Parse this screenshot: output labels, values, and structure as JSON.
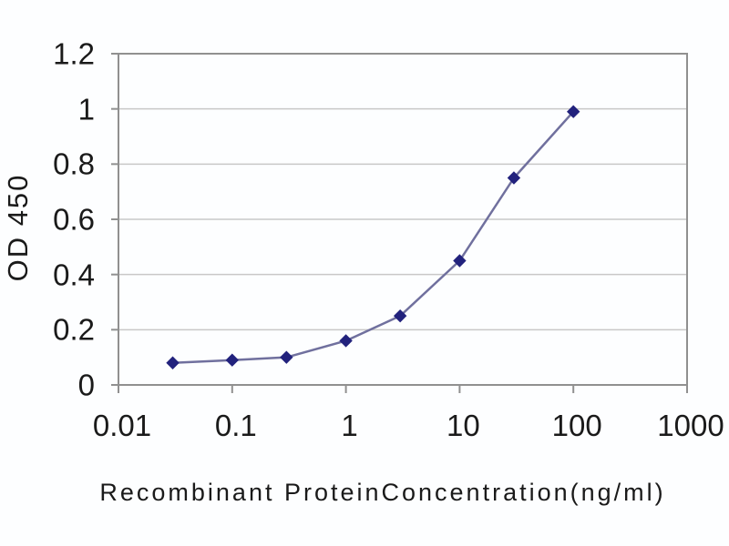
{
  "page": {
    "background_color": "#fdfeff"
  },
  "chart_data": {
    "type": "line",
    "title": "",
    "xlabel": "Recombinant ProteinConcentration(ng/ml)",
    "ylabel": "OD 450",
    "x_scale": "log",
    "y_scale": "linear",
    "xlim": [
      0.01,
      1000
    ],
    "ylim": [
      0,
      1.2
    ],
    "x": [
      0.03,
      0.1,
      0.3,
      1,
      3,
      10,
      30,
      100
    ],
    "y": [
      0.08,
      0.09,
      0.1,
      0.16,
      0.25,
      0.45,
      0.75,
      0.99
    ],
    "x_tick_labels": [
      "0.01",
      "0.1",
      "1",
      "10",
      "100",
      "1000"
    ],
    "x_tick_values": [
      0.01,
      0.1,
      1,
      10,
      100,
      1000
    ],
    "y_tick_labels": [
      "0",
      "0.2",
      "0.4",
      "0.6",
      "0.8",
      "1",
      "1.2"
    ],
    "y_tick_values": [
      0,
      0.2,
      0.4,
      0.6,
      0.8,
      1,
      1.2
    ],
    "grid": "horizontal",
    "legend": "none",
    "marker": "diamond",
    "colors": {
      "marker": "#22227d",
      "line": "#70709e",
      "grid": "#c8c8c8",
      "axis": "#909090",
      "text": "#1a1a1a",
      "background": "#fdfeff"
    }
  }
}
